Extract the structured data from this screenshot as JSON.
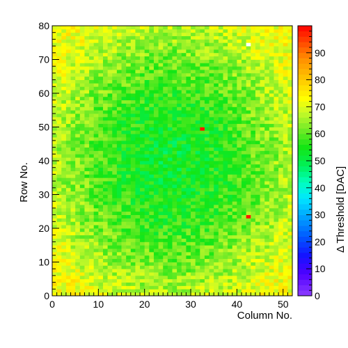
{
  "chart_data": {
    "type": "heatmap",
    "title": "",
    "xlabel": "Column No.",
    "ylabel": "Row No.",
    "zlabel": "Δ Threshold [DAC]",
    "xlim": [
      0,
      52
    ],
    "ylim": [
      0,
      80
    ],
    "zlim": [
      0,
      100
    ],
    "grid": false,
    "x_ticks": [
      0,
      10,
      20,
      30,
      40,
      50
    ],
    "y_ticks": [
      0,
      10,
      20,
      30,
      40,
      50,
      60,
      70,
      80
    ],
    "z_ticks": [
      0,
      10,
      20,
      30,
      40,
      50,
      60,
      70,
      80,
      90
    ],
    "n_columns": 52,
    "n_rows": 80,
    "value_model": {
      "center_value": 52,
      "edge_value": 72,
      "noise": 6
    },
    "outliers": [
      {
        "column": 32,
        "row": 49,
        "value": 98
      },
      {
        "column": 42,
        "row": 23,
        "value": 98
      },
      {
        "column": 42,
        "row": 74,
        "value": 100
      }
    ]
  }
}
